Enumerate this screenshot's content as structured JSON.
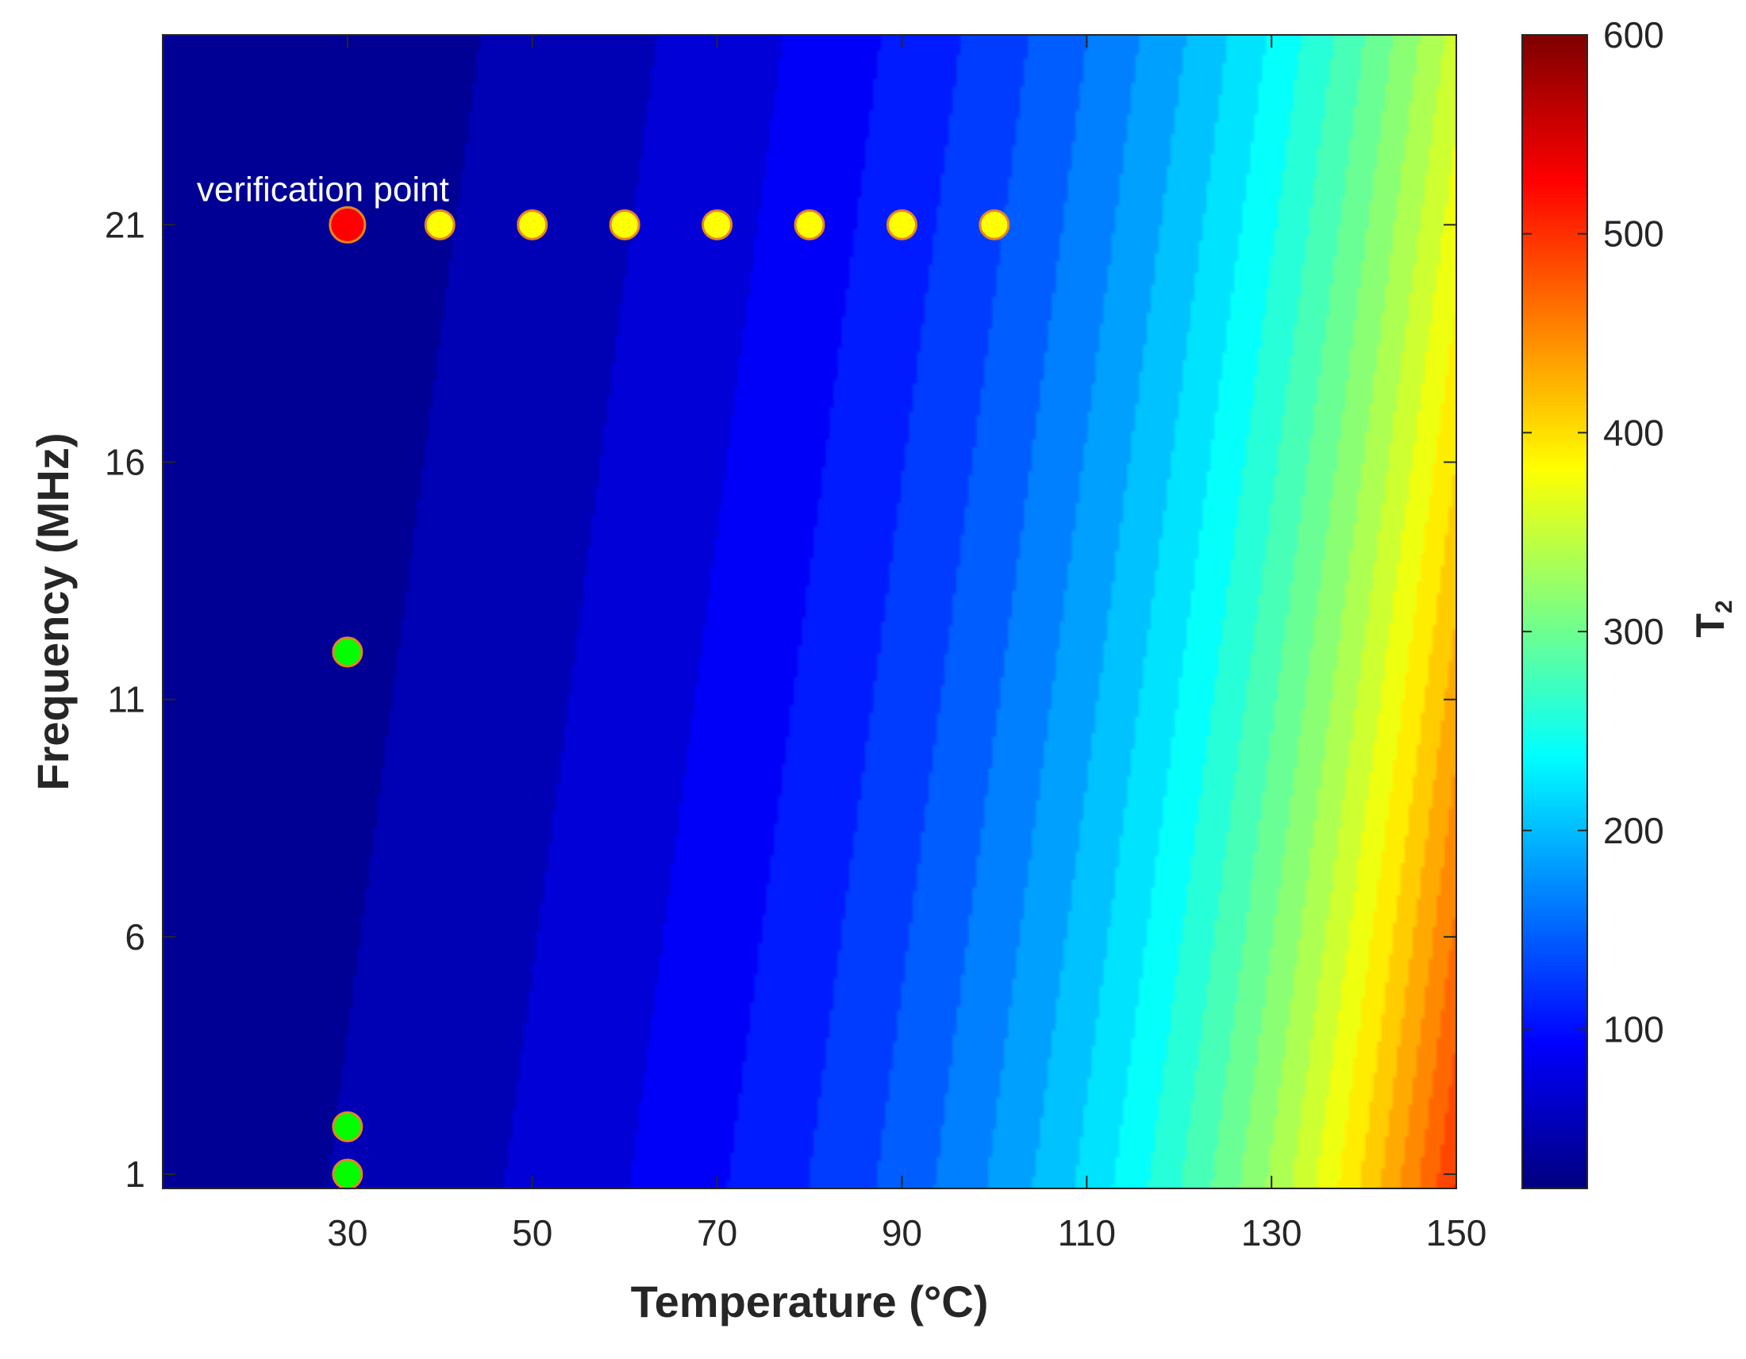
{
  "chart_data": {
    "type": "contour",
    "title": "",
    "xlabel": "Temperature  (°C)",
    "ylabel": "Frequency  (MHz)",
    "xlim": [
      10,
      150
    ],
    "ylim": [
      0.7,
      25
    ],
    "xticks": [
      30,
      50,
      70,
      90,
      110,
      130,
      150
    ],
    "yticks": [
      1,
      6,
      11,
      16,
      21
    ],
    "colorbar": {
      "label": "T",
      "label_subscript": "2",
      "range": [
        20,
        600
      ],
      "ticks": [
        100,
        200,
        300,
        400,
        500,
        600
      ],
      "colormap": "jet",
      "levels": 30
    },
    "surface_trend": "T2 increases with temperature and decreases with frequency; maximum (~600) near 150 °C, 1 MHz; minimum (~30) at low temperature, high frequency",
    "annotation": {
      "text": "verification point",
      "x": 30,
      "y": 21
    },
    "series": [
      {
        "color": "#ff0000",
        "points": [
          {
            "x": 30,
            "y": 21
          }
        ]
      },
      {
        "color": "#ffff00",
        "points": [
          {
            "x": 40,
            "y": 21
          },
          {
            "x": 50,
            "y": 21
          },
          {
            "x": 60,
            "y": 21
          },
          {
            "x": 70,
            "y": 21
          },
          {
            "x": 80,
            "y": 21
          },
          {
            "x": 90,
            "y": 21
          },
          {
            "x": 100,
            "y": 21
          }
        ]
      },
      {
        "color": "#00ff00",
        "points": [
          {
            "x": 30,
            "y": 12
          },
          {
            "x": 30,
            "y": 2
          },
          {
            "x": 30,
            "y": 1
          }
        ]
      }
    ]
  }
}
